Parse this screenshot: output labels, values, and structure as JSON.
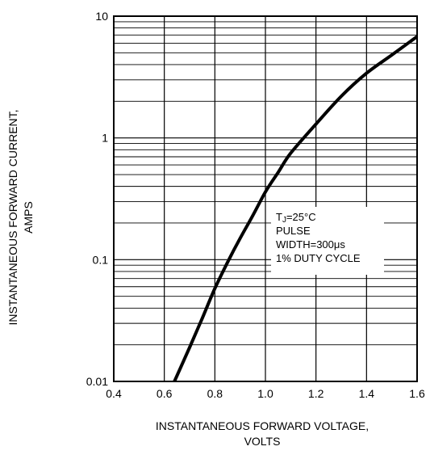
{
  "chart_data": {
    "type": "line",
    "title": "",
    "xlabel": [
      "INSTANTANEOUS FORWARD VOLTAGE,",
      "VOLTS"
    ],
    "ylabel": [
      "INSTANTANEOUS FORWARD CURRENT,",
      "AMPS"
    ],
    "xlim": [
      0.4,
      1.6
    ],
    "ylim": [
      0.01,
      10
    ],
    "yscale": "log",
    "grid": true,
    "x_ticks": [
      {
        "value": 0.4,
        "label": "0.4"
      },
      {
        "value": 0.6,
        "label": "0.6"
      },
      {
        "value": 0.8,
        "label": "0.8"
      },
      {
        "value": 1.0,
        "label": "1.0"
      },
      {
        "value": 1.2,
        "label": "1.2"
      },
      {
        "value": 1.4,
        "label": "1.4"
      },
      {
        "value": 1.6,
        "label": "1.6"
      }
    ],
    "y_ticks": [
      {
        "value": 0.01,
        "label": "0.01"
      },
      {
        "value": 0.1,
        "label": "0.1"
      },
      {
        "value": 1,
        "label": "1"
      },
      {
        "value": 10,
        "label": "10"
      }
    ],
    "annotation": {
      "line1_main": "T",
      "line1_sub": "J",
      "line1_rest": "=25°C",
      "line2": "PULSE",
      "line3": "WIDTH=300μs",
      "line4": "1% DUTY CYCLE"
    },
    "series": [
      {
        "x": [
          0.64,
          0.7,
          0.75,
          0.8,
          0.85,
          0.9,
          0.95,
          1.0,
          1.05,
          1.1,
          1.2,
          1.3,
          1.4,
          1.5,
          1.6
        ],
        "y": [
          0.01,
          0.019,
          0.033,
          0.058,
          0.095,
          0.15,
          0.23,
          0.36,
          0.52,
          0.75,
          1.3,
          2.2,
          3.4,
          4.8,
          6.8
        ]
      }
    ]
  }
}
